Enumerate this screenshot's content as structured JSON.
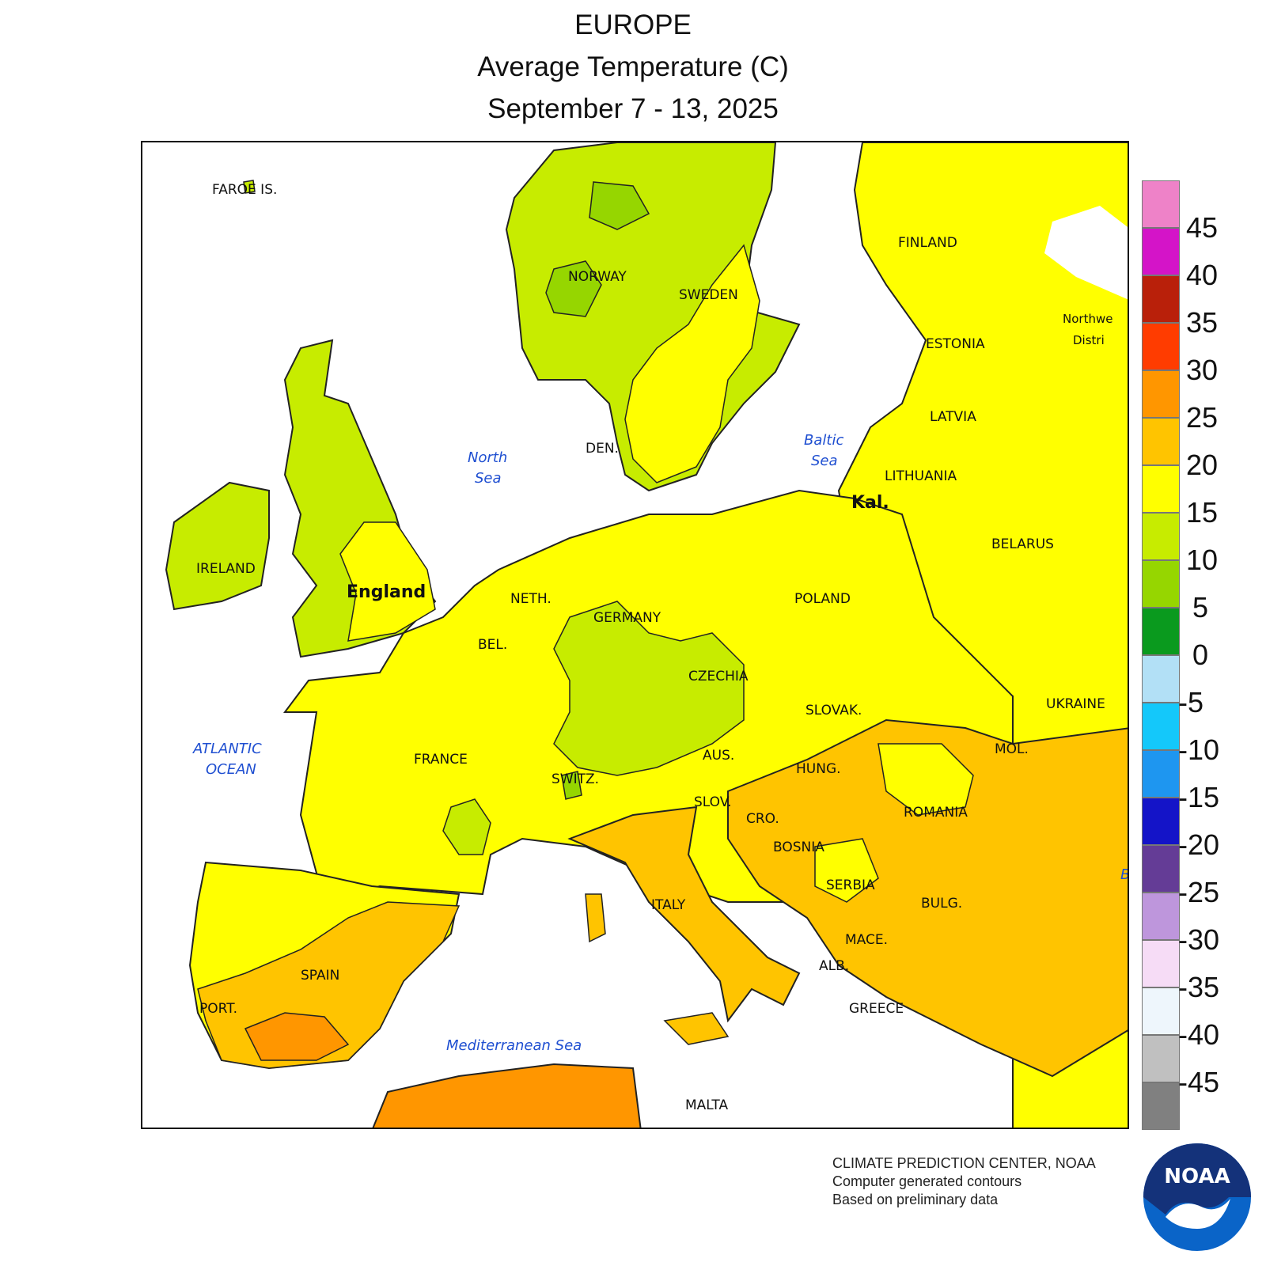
{
  "title": {
    "line1": "EUROPE",
    "line2": "Average Temperature (C)",
    "line3": "September 7 - 13, 2025"
  },
  "map": {
    "countries": [
      {
        "id": "faroe",
        "label": "FAROE IS."
      },
      {
        "id": "norway",
        "label": "NORWAY"
      },
      {
        "id": "sweden",
        "label": "SWEDEN"
      },
      {
        "id": "finland",
        "label": "FINLAND"
      },
      {
        "id": "estonia",
        "label": "ESTONIA"
      },
      {
        "id": "latvia",
        "label": "LATVIA"
      },
      {
        "id": "lithuania",
        "label": "LITHUANIA"
      },
      {
        "id": "belarus",
        "label": "BELARUS"
      },
      {
        "id": "denmark",
        "label": "DEN."
      },
      {
        "id": "ireland",
        "label": "IRELAND"
      },
      {
        "id": "england",
        "label": "England"
      },
      {
        "id": "netherlands",
        "label": "NETH."
      },
      {
        "id": "belgium",
        "label": "BEL."
      },
      {
        "id": "germany",
        "label": "GERMANY"
      },
      {
        "id": "poland",
        "label": "POLAND"
      },
      {
        "id": "czechia",
        "label": "CZECHIA"
      },
      {
        "id": "slovakia",
        "label": "SLOVAK."
      },
      {
        "id": "ukraine",
        "label": "UKRAINE"
      },
      {
        "id": "moldova",
        "label": "MOL."
      },
      {
        "id": "france",
        "label": "FRANCE"
      },
      {
        "id": "switzerland",
        "label": "SWITZ."
      },
      {
        "id": "austria",
        "label": "AUS."
      },
      {
        "id": "hungary",
        "label": "HUNG."
      },
      {
        "id": "romania",
        "label": "ROMANIA"
      },
      {
        "id": "slovenia",
        "label": "SLOV."
      },
      {
        "id": "croatia",
        "label": "CRO."
      },
      {
        "id": "bosnia",
        "label": "BOSNIA"
      },
      {
        "id": "serbia",
        "label": "SERBIA"
      },
      {
        "id": "bulgaria",
        "label": "BULG."
      },
      {
        "id": "macedonia",
        "label": "MACE."
      },
      {
        "id": "albania",
        "label": "ALB."
      },
      {
        "id": "greece",
        "label": "GREECE"
      },
      {
        "id": "italy",
        "label": "ITALY"
      },
      {
        "id": "spain",
        "label": "SPAIN"
      },
      {
        "id": "portugal",
        "label": "PORT."
      },
      {
        "id": "malta",
        "label": "MALTA"
      },
      {
        "id": "kaliningrad",
        "label": "Kal."
      },
      {
        "id": "nw-district-1",
        "label": "Northwe"
      },
      {
        "id": "nw-district-2",
        "label": "Distri"
      },
      {
        "id": "black-sea-partial",
        "label": "B"
      }
    ],
    "seas": [
      {
        "id": "north-sea-1",
        "label": "North"
      },
      {
        "id": "north-sea-2",
        "label": "Sea"
      },
      {
        "id": "baltic-sea-1",
        "label": "Baltic"
      },
      {
        "id": "baltic-sea-2",
        "label": "Sea"
      },
      {
        "id": "atlantic-1",
        "label": "ATLANTIC"
      },
      {
        "id": "atlantic-2",
        "label": "OCEAN"
      },
      {
        "id": "mediterranean",
        "label": "Mediterranean Sea"
      }
    ],
    "temperature_fill": {
      "5_to_10": "#96d600",
      "10_to_15": "#c7ec00",
      "15_to_20": "#ffff00",
      "20_to_25": "#ffc400",
      "25_to_30": "#ff9600"
    }
  },
  "legend": {
    "colors": [
      "#ee82c8",
      "#d414c8",
      "#b9200a",
      "#ff3c00",
      "#ff9600",
      "#ffc400",
      "#ffff00",
      "#c7ec00",
      "#96d600",
      "#0a9a1e",
      "#b2e0f6",
      "#14c8fa",
      "#1e96f0",
      "#1414c8",
      "#643c96",
      "#be96dc",
      "#f6dcf6",
      "#eef6fc",
      "#c0c0c0",
      "#808080"
    ],
    "labels": [
      "45",
      "40",
      "35",
      "30",
      "25",
      "20",
      "15",
      "10",
      "5",
      "0",
      "-5",
      "-10",
      "-15",
      "-20",
      "-25",
      "-30",
      "-35",
      "-40",
      "-45"
    ]
  },
  "credits": {
    "line1": "CLIMATE PREDICTION CENTER, NOAA",
    "line2": "Computer generated contours",
    "line3": "Based on preliminary data"
  },
  "logo": {
    "text": "NOAA"
  }
}
